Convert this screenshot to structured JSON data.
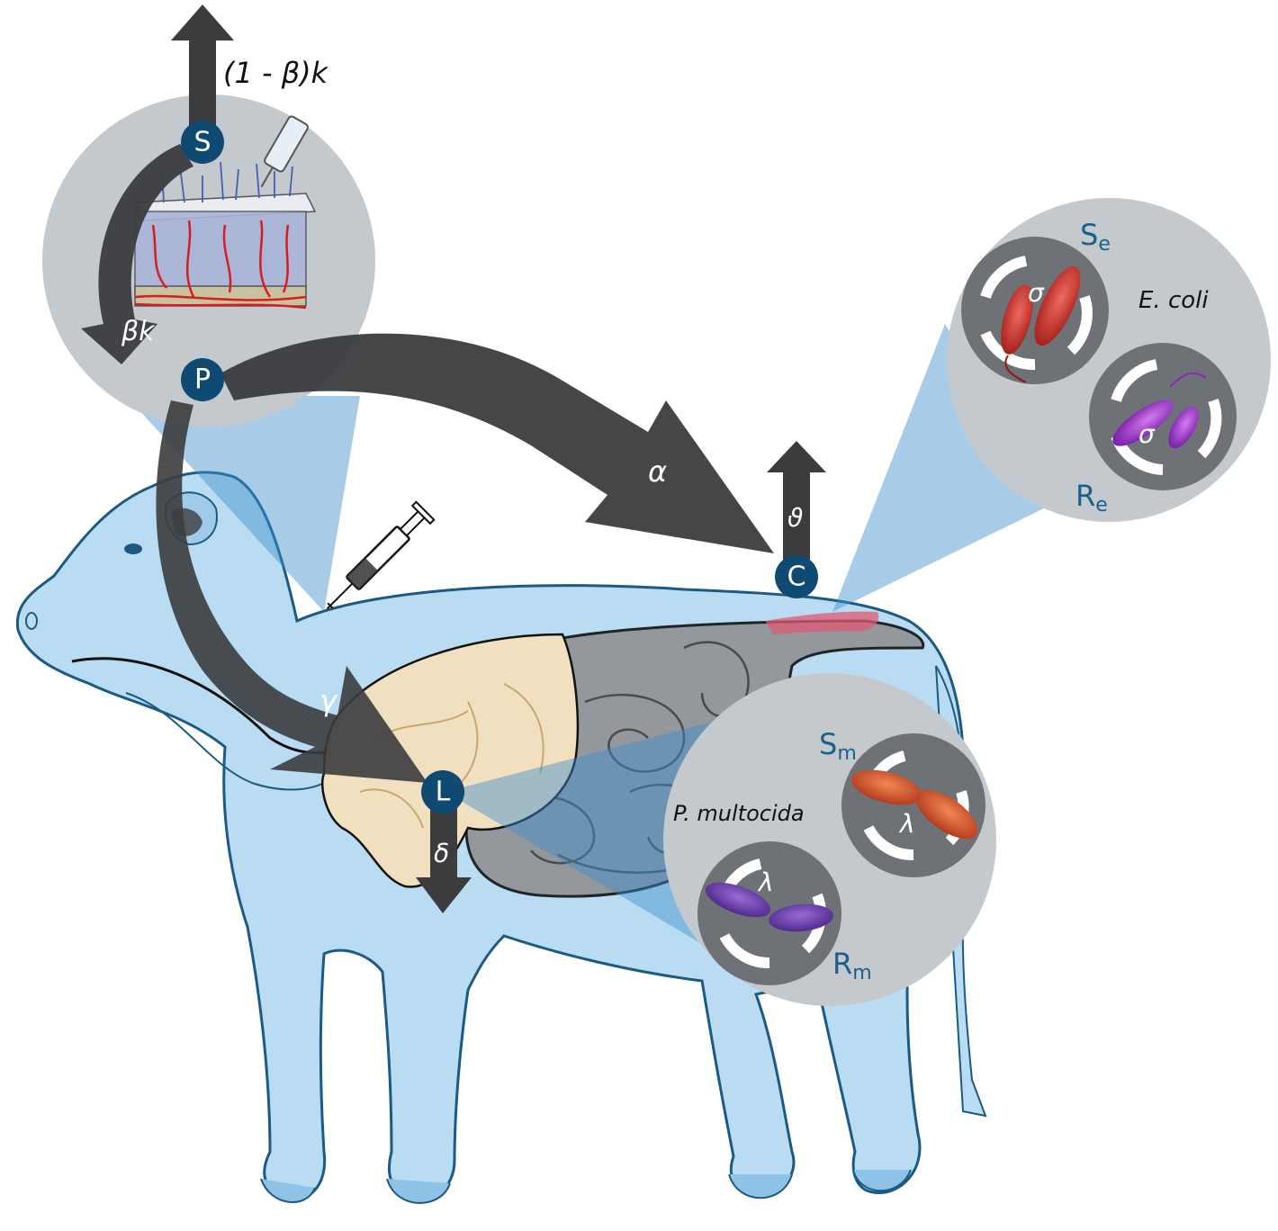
{
  "nodes": {
    "S": "S",
    "P": "P",
    "C": "C",
    "L": "L"
  },
  "rates": {
    "elimination_top": "(1 - β)k",
    "absorption": "βk",
    "to_colon": "α",
    "to_lung": "γ",
    "colon_out": "ϑ",
    "lung_out": "δ"
  },
  "gut_inset": {
    "species": "E. coli",
    "susceptible_label": "S",
    "susceptible_sub": "e",
    "resistant_label": "R",
    "resistant_sub": "e",
    "rate": "σ"
  },
  "lung_inset": {
    "species": "P. multocida",
    "susceptible_label": "S",
    "susceptible_sub": "m",
    "resistant_label": "R",
    "resistant_sub": "m",
    "rate": "λ"
  },
  "colors": {
    "node_fill": "#0e4a72",
    "arrow": "#3b3c3e",
    "inset_bg": "#c4c9ce",
    "dial_bg": "#6e7176",
    "cow_fill": "#b9dcf2",
    "cow_stroke": "#1b5a83",
    "beam": "#5aa6d6",
    "label_blue": "#1d5f8c",
    "bacteria_red": "#c8332a",
    "bacteria_purple": "#9a3cc0",
    "bacteria_orange": "#d6552a"
  }
}
